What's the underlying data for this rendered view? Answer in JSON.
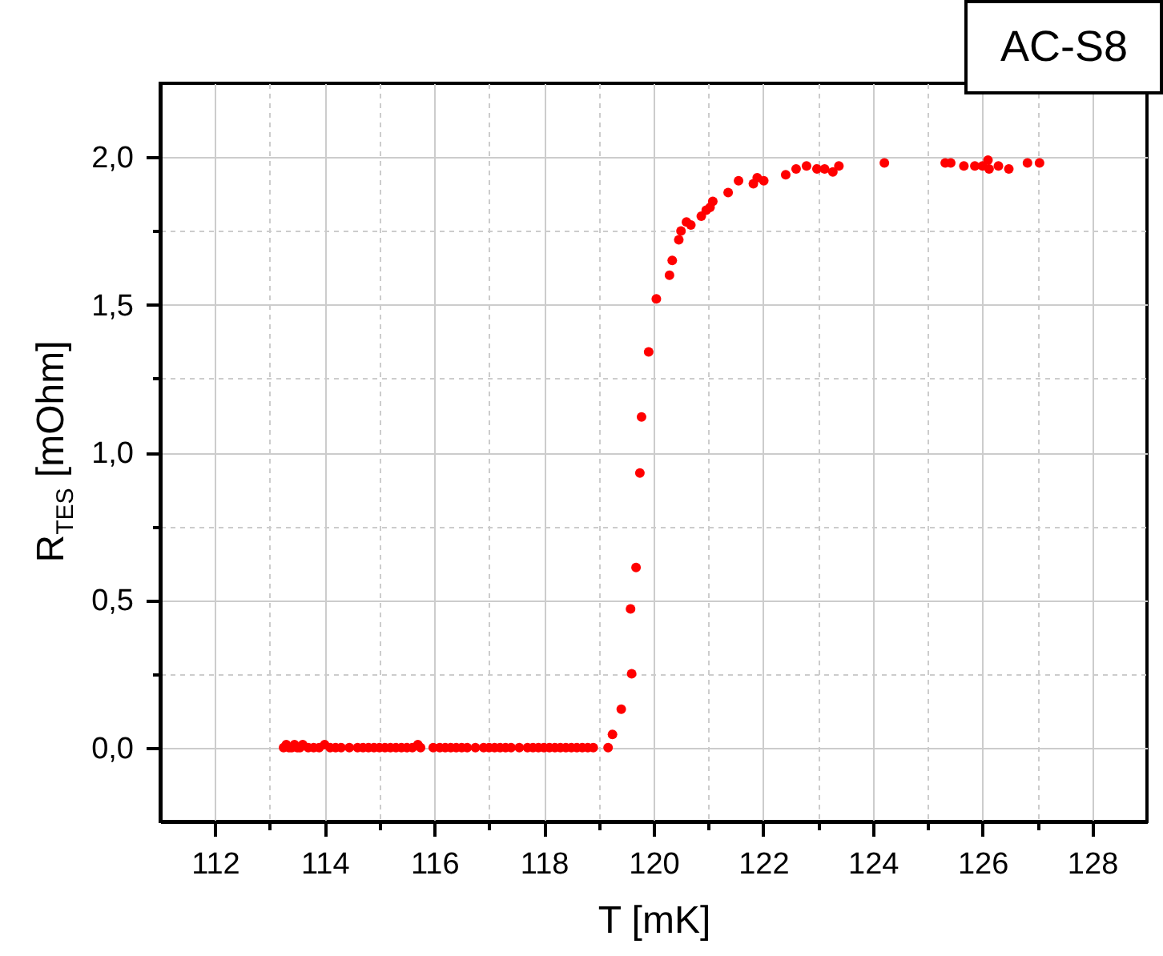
{
  "chart_data": {
    "type": "scatter",
    "xlabel": "T [mK]",
    "ylabel": "R$_{TES}$ [mOhm]",
    "annotations": [
      "AC-S8"
    ],
    "xlim": [
      111,
      129
    ],
    "ylim": [
      -0.25,
      2.25
    ],
    "xticks": [
      112,
      {
        "value": 113,
        "label": null
      },
      114,
      {
        "value": 115,
        "label": null
      },
      116,
      {
        "value": 117,
        "label": null
      },
      118,
      {
        "value": 119,
        "label": null
      },
      120,
      {
        "value": 121,
        "label": null
      },
      122,
      {
        "value": 123,
        "label": null
      },
      124,
      {
        "value": 125,
        "label": null
      },
      126,
      {
        "value": 127,
        "label": null
      },
      128
    ],
    "yticks": [
      {
        "value": 0,
        "label": "0,0"
      },
      {
        "value": 0.25,
        "label": null
      },
      {
        "value": 0.5,
        "label": "0,5"
      },
      {
        "value": 0.75,
        "label": null
      },
      {
        "value": 1,
        "label": "1,0"
      },
      {
        "value": 1.25,
        "label": null
      },
      {
        "value": 1.5,
        "label": "1,5"
      },
      {
        "value": 1.75,
        "label": null
      },
      {
        "value": 2,
        "label": "2,0"
      }
    ],
    "grid": true,
    "marker": "circle",
    "series": [
      {
        "color": "#ff0000",
        "x": [
          113.25,
          113.3,
          113.35,
          113.4,
          113.45,
          113.5,
          113.55,
          113.6,
          113.7,
          113.8,
          113.9,
          114.0,
          114.1,
          114.2,
          114.3,
          114.45,
          114.6,
          114.7,
          114.8,
          114.9,
          115.0,
          115.1,
          115.2,
          115.3,
          115.4,
          115.5,
          115.6,
          115.7,
          115.75,
          115.98,
          116.1,
          116.2,
          116.3,
          116.4,
          116.5,
          116.6,
          116.75,
          116.9,
          117.0,
          117.1,
          117.2,
          117.3,
          117.4,
          117.55,
          117.7,
          117.8,
          117.9,
          118.0,
          118.1,
          118.2,
          118.3,
          118.4,
          118.5,
          118.6,
          118.7,
          118.8,
          118.9,
          119.17,
          119.25,
          119.41,
          119.6,
          119.58,
          119.68,
          119.75,
          119.78,
          119.91,
          120.05,
          120.29,
          120.34,
          120.46,
          120.5,
          120.6,
          120.68,
          120.87,
          120.96,
          121.03,
          121.08,
          121.36,
          121.55,
          121.82,
          121.89,
          122.01,
          122.41,
          122.6,
          122.79,
          122.98,
          123.12,
          123.27,
          123.38,
          124.21,
          125.32,
          125.42,
          125.66,
          125.86,
          126.0,
          126.1,
          126.12,
          126.29,
          126.48,
          126.82,
          127.04
        ],
        "values": [
          0.0,
          0.01,
          0.0,
          0.0,
          0.01,
          0.0,
          0.0,
          0.01,
          0.0,
          0.0,
          0.0,
          0.01,
          0.0,
          0.0,
          0.0,
          0.0,
          0.0,
          0.0,
          0.0,
          0.0,
          0.0,
          0.0,
          0.0,
          0.0,
          0.0,
          0.0,
          0.0,
          0.01,
          0.0,
          0.0,
          0.0,
          0.0,
          0.0,
          0.0,
          0.0,
          0.0,
          0.0,
          0.0,
          0.0,
          0.0,
          0.0,
          0.0,
          0.0,
          0.0,
          0.0,
          0.0,
          0.0,
          0.0,
          0.0,
          0.0,
          0.0,
          0.0,
          0.0,
          0.0,
          0.0,
          0.0,
          0.0,
          0.0,
          0.045,
          0.13,
          0.25,
          0.47,
          0.61,
          0.93,
          1.12,
          1.34,
          1.52,
          1.6,
          1.65,
          1.72,
          1.75,
          1.78,
          1.77,
          1.8,
          1.82,
          1.83,
          1.85,
          1.88,
          1.92,
          1.91,
          1.93,
          1.92,
          1.94,
          1.96,
          1.97,
          1.96,
          1.96,
          1.95,
          1.97,
          1.98,
          1.98,
          1.98,
          1.97,
          1.97,
          1.97,
          1.99,
          1.96,
          1.97,
          1.96,
          1.98,
          1.98
        ]
      }
    ]
  }
}
